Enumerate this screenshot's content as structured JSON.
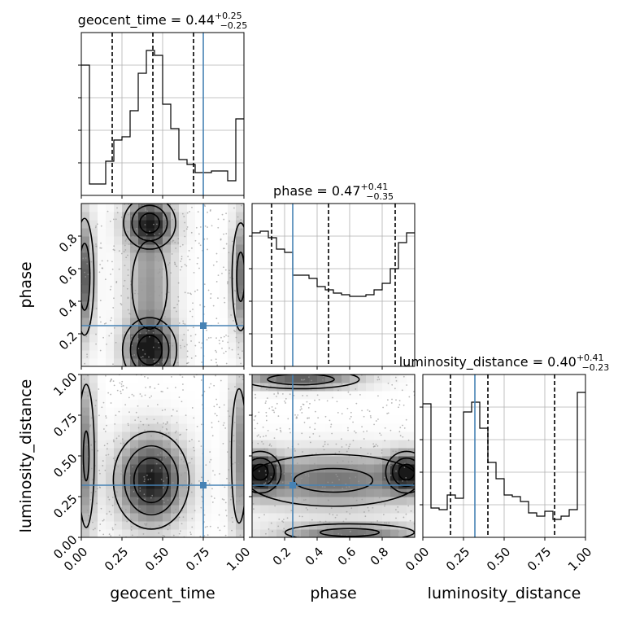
{
  "chart_data": {
    "type": "corner",
    "parameters": [
      "geocent_time",
      "phase",
      "luminosity_distance"
    ],
    "truth_color": "#4682b4",
    "truths": {
      "geocent_time": 0.75,
      "phase": 0.25,
      "luminosity_distance": 0.32
    },
    "ranges": {
      "geocent_time": [
        0.0,
        1.0
      ],
      "phase": [
        0.0,
        1.0
      ],
      "luminosity_distance": [
        0.0,
        1.0
      ]
    },
    "ticks": {
      "geocent_time": [
        "0.00",
        "0.25",
        "0.50",
        "0.75",
        "1.00"
      ],
      "phase": [
        "0.2",
        "0.4",
        "0.6",
        "0.8"
      ],
      "luminosity_distance": [
        "0.00",
        "0.25",
        "0.50",
        "0.75",
        "1.00"
      ]
    },
    "titles": {
      "geocent_time": {
        "name": "geocent_time",
        "median": "0.44",
        "plus": "+0.25",
        "minus": "−0.25"
      },
      "phase": {
        "name": "phase",
        "median": "0.47",
        "plus": "+0.41",
        "minus": "−0.35"
      },
      "luminosity_distance": {
        "name": "luminosity_distance",
        "median": "0.40",
        "plus": "+0.41",
        "minus": "−0.23"
      }
    },
    "quantiles": {
      "geocent_time": [
        0.19,
        0.44,
        0.69
      ],
      "phase": [
        0.12,
        0.47,
        0.88
      ],
      "luminosity_distance": [
        0.17,
        0.4,
        0.81
      ]
    },
    "histograms": {
      "geocent_time": [
        0.8,
        0.07,
        0.07,
        0.21,
        0.34,
        0.36,
        0.52,
        0.75,
        0.89,
        0.86,
        0.56,
        0.41,
        0.22,
        0.19,
        0.14,
        0.14,
        0.15,
        0.15,
        0.09,
        0.47
      ],
      "phase": [
        0.82,
        0.83,
        0.79,
        0.72,
        0.7,
        0.56,
        0.56,
        0.54,
        0.49,
        0.47,
        0.45,
        0.44,
        0.43,
        0.43,
        0.44,
        0.47,
        0.51,
        0.6,
        0.76,
        0.82
      ],
      "luminosity_distance": [
        0.82,
        0.18,
        0.17,
        0.26,
        0.24,
        0.77,
        0.83,
        0.67,
        0.46,
        0.36,
        0.26,
        0.25,
        0.22,
        0.15,
        0.13,
        0.16,
        0.11,
        0.13,
        0.17,
        0.89
      ]
    },
    "hist_ylim": [
      0,
      1.0
    ],
    "grid": true
  }
}
